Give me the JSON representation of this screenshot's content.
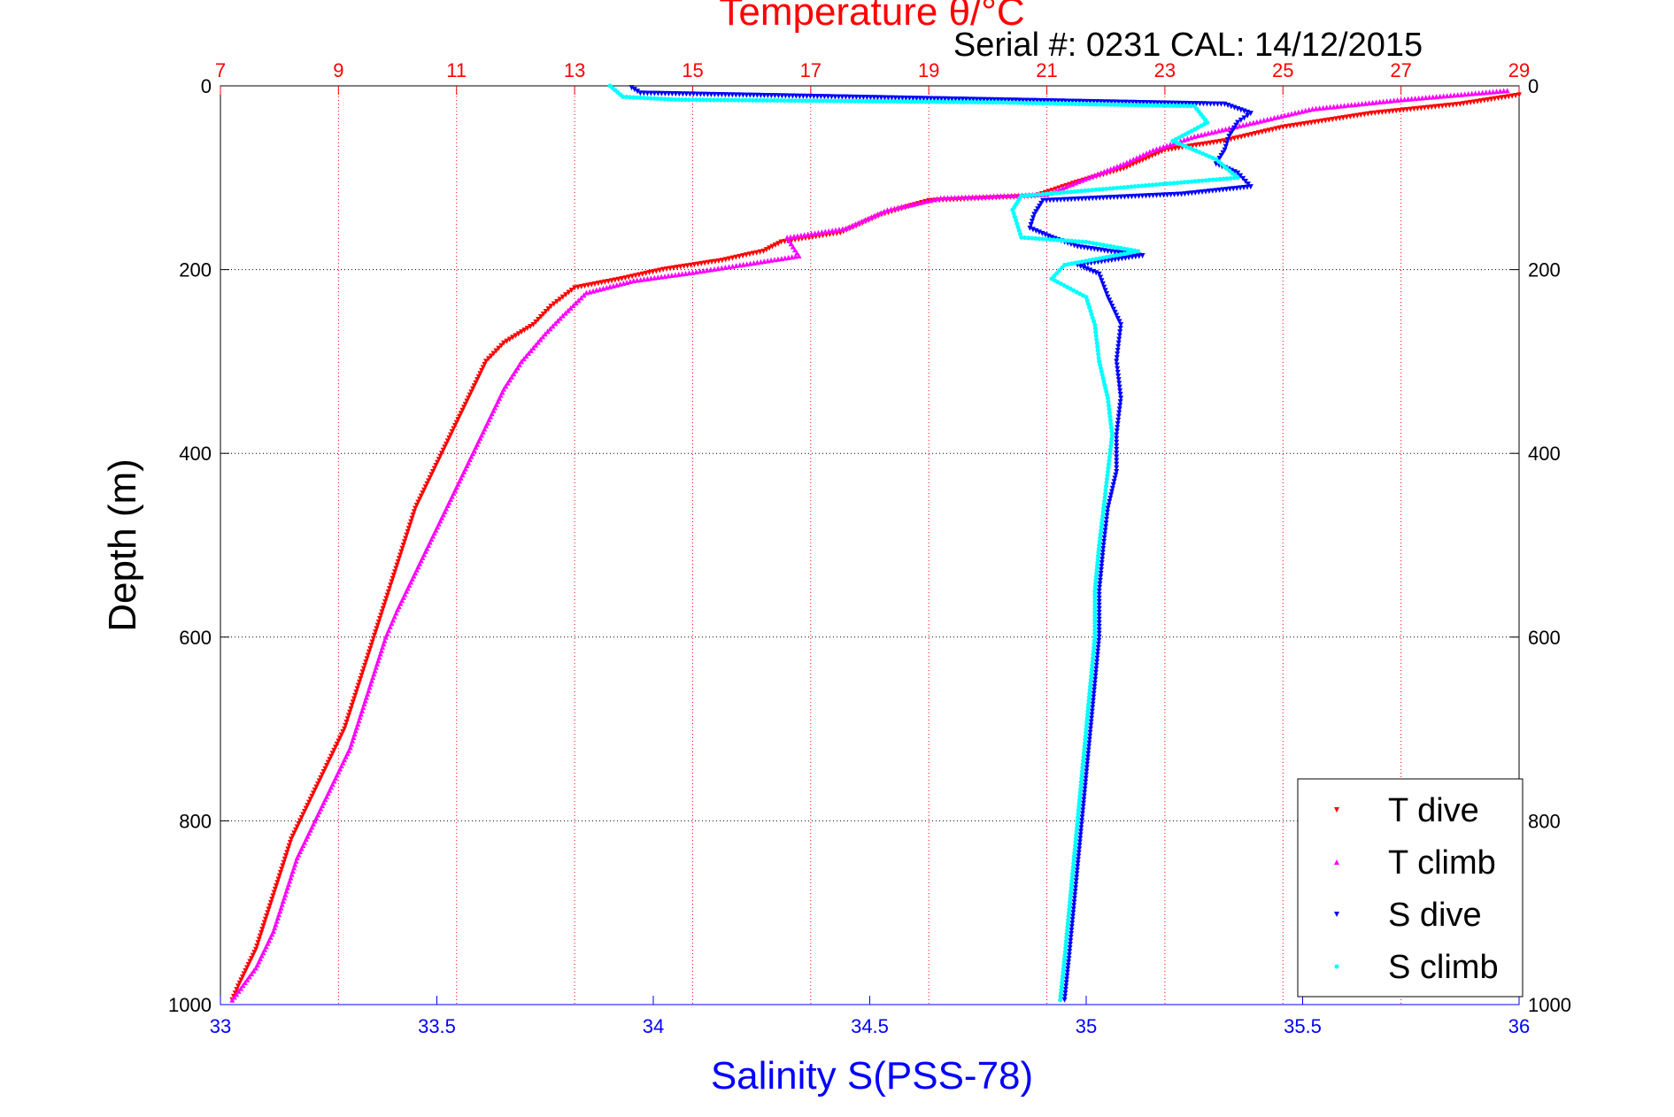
{
  "chart_data": {
    "type": "scatter",
    "title": "Temperature θ/°C",
    "subtitle": "Serial #: 0231  CAL: 14/12/2015",
    "xlabel": "Salinity S(PSS-78)",
    "ylabel": "Depth (m)",
    "x_salinity": {
      "range": [
        33,
        36
      ],
      "ticks": [
        33,
        33.5,
        34,
        34.5,
        35,
        35.5,
        36
      ],
      "tick_labels": [
        "33",
        "33.5",
        "34",
        "34.5",
        "35",
        "35.5",
        "36"
      ]
    },
    "x_temperature": {
      "range": [
        7,
        29
      ],
      "ticks": [
        7,
        9,
        11,
        13,
        15,
        17,
        19,
        21,
        23,
        25,
        27,
        29
      ],
      "tick_labels": [
        "7",
        "9",
        "11",
        "13",
        "15",
        "17",
        "19",
        "21",
        "23",
        "25",
        "27",
        "29"
      ]
    },
    "y_depth": {
      "range": [
        0,
        1000
      ],
      "reversed": true,
      "ticks": [
        0,
        200,
        400,
        600,
        800,
        1000
      ],
      "tick_labels": [
        "0",
        "200",
        "400",
        "600",
        "800",
        "1000"
      ]
    },
    "grid": true,
    "legend_position": "bottom-right",
    "series": [
      {
        "name": "T dive",
        "axis": "temperature",
        "color": "#ff0000",
        "marker": "triangle-down",
        "points": [
          [
            29,
            10
          ],
          [
            28,
            20
          ],
          [
            26.5,
            30
          ],
          [
            25,
            45
          ],
          [
            24,
            60
          ],
          [
            23,
            70
          ],
          [
            22.3,
            90
          ],
          [
            21.5,
            105
          ],
          [
            20.8,
            120
          ],
          [
            19,
            125
          ],
          [
            18.2,
            140
          ],
          [
            17.5,
            160
          ],
          [
            16.5,
            170
          ],
          [
            16.2,
            180
          ],
          [
            15.5,
            190
          ],
          [
            14.5,
            200
          ],
          [
            13.8,
            210
          ],
          [
            13,
            220
          ],
          [
            12.6,
            240
          ],
          [
            12.3,
            260
          ],
          [
            11.8,
            280
          ],
          [
            11.5,
            300
          ],
          [
            11.2,
            340
          ],
          [
            10.9,
            380
          ],
          [
            10.6,
            420
          ],
          [
            10.3,
            460
          ],
          [
            10.1,
            500
          ],
          [
            9.9,
            540
          ],
          [
            9.7,
            580
          ],
          [
            9.5,
            620
          ],
          [
            9.3,
            660
          ],
          [
            9.1,
            700
          ],
          [
            8.8,
            740
          ],
          [
            8.5,
            780
          ],
          [
            8.2,
            820
          ],
          [
            8.0,
            860
          ],
          [
            7.8,
            900
          ],
          [
            7.6,
            940
          ],
          [
            7.3,
            980
          ],
          [
            7.2,
            995
          ]
        ]
      },
      {
        "name": "T climb",
        "axis": "temperature",
        "color": "#ff00ff",
        "marker": "triangle-up",
        "points": [
          [
            28.8,
            5
          ],
          [
            27,
            15
          ],
          [
            25.5,
            25
          ],
          [
            24.5,
            40
          ],
          [
            23.5,
            55
          ],
          [
            22.8,
            70
          ],
          [
            22.3,
            85
          ],
          [
            21.7,
            100
          ],
          [
            21,
            118
          ],
          [
            19.2,
            122
          ],
          [
            18.3,
            135
          ],
          [
            17.6,
            155
          ],
          [
            16.6,
            165
          ],
          [
            16.8,
            185
          ],
          [
            15.8,
            195
          ],
          [
            15,
            203
          ],
          [
            14,
            212
          ],
          [
            13.2,
            225
          ],
          [
            12.8,
            250
          ],
          [
            12.5,
            270
          ],
          [
            12.1,
            300
          ],
          [
            11.8,
            330
          ],
          [
            11.5,
            370
          ],
          [
            11.2,
            410
          ],
          [
            10.9,
            450
          ],
          [
            10.6,
            490
          ],
          [
            10.3,
            530
          ],
          [
            10.0,
            570
          ],
          [
            9.8,
            600
          ],
          [
            9.6,
            640
          ],
          [
            9.4,
            680
          ],
          [
            9.2,
            720
          ],
          [
            8.9,
            760
          ],
          [
            8.6,
            800
          ],
          [
            8.3,
            840
          ],
          [
            8.1,
            880
          ],
          [
            7.9,
            920
          ],
          [
            7.6,
            960
          ],
          [
            7.2,
            995
          ]
        ]
      },
      {
        "name": "S dive",
        "axis": "salinity",
        "color": "#0000ff",
        "marker": "triangle-down",
        "points": [
          [
            33.95,
            2
          ],
          [
            33.97,
            8
          ],
          [
            35.32,
            20
          ],
          [
            35.38,
            30
          ],
          [
            35.35,
            40
          ],
          [
            35.33,
            55
          ],
          [
            35.32,
            70
          ],
          [
            35.3,
            85
          ],
          [
            35.35,
            95
          ],
          [
            35.38,
            110
          ],
          [
            35.22,
            118
          ],
          [
            34.9,
            125
          ],
          [
            34.88,
            140
          ],
          [
            34.87,
            155
          ],
          [
            34.92,
            165
          ],
          [
            34.98,
            175
          ],
          [
            35.05,
            180
          ],
          [
            35.13,
            185
          ],
          [
            34.98,
            195
          ],
          [
            35.03,
            205
          ],
          [
            35.05,
            230
          ],
          [
            35.08,
            260
          ],
          [
            35.07,
            300
          ],
          [
            35.08,
            340
          ],
          [
            35.07,
            380
          ],
          [
            35.07,
            420
          ],
          [
            35.05,
            460
          ],
          [
            35.04,
            500
          ],
          [
            35.03,
            550
          ],
          [
            35.03,
            600
          ],
          [
            35.02,
            650
          ],
          [
            35.01,
            700
          ],
          [
            35.0,
            750
          ],
          [
            34.99,
            800
          ],
          [
            34.98,
            850
          ],
          [
            34.97,
            900
          ],
          [
            34.96,
            950
          ],
          [
            34.95,
            995
          ]
        ]
      },
      {
        "name": "S climb",
        "axis": "salinity",
        "color": "#00ffff",
        "marker": "dot",
        "points": [
          [
            33.9,
            0
          ],
          [
            33.93,
            12
          ],
          [
            34.05,
            15
          ],
          [
            34.8,
            18
          ],
          [
            35.0,
            20
          ],
          [
            35.25,
            22
          ],
          [
            35.28,
            40
          ],
          [
            35.2,
            60
          ],
          [
            35.3,
            80
          ],
          [
            35.35,
            100
          ],
          [
            34.85,
            120
          ],
          [
            34.83,
            135
          ],
          [
            34.84,
            150
          ],
          [
            34.85,
            165
          ],
          [
            35.0,
            170
          ],
          [
            35.12,
            180
          ],
          [
            34.95,
            195
          ],
          [
            34.92,
            210
          ],
          [
            35.0,
            230
          ],
          [
            35.02,
            260
          ],
          [
            35.03,
            300
          ],
          [
            35.05,
            340
          ],
          [
            35.06,
            380
          ],
          [
            35.05,
            420
          ],
          [
            35.04,
            460
          ],
          [
            35.03,
            500
          ],
          [
            35.02,
            550
          ],
          [
            35.02,
            600
          ],
          [
            35.01,
            650
          ],
          [
            35.0,
            700
          ],
          [
            34.99,
            750
          ],
          [
            34.98,
            800
          ],
          [
            34.97,
            850
          ],
          [
            34.96,
            900
          ],
          [
            34.95,
            950
          ],
          [
            34.94,
            995
          ]
        ]
      }
    ]
  }
}
